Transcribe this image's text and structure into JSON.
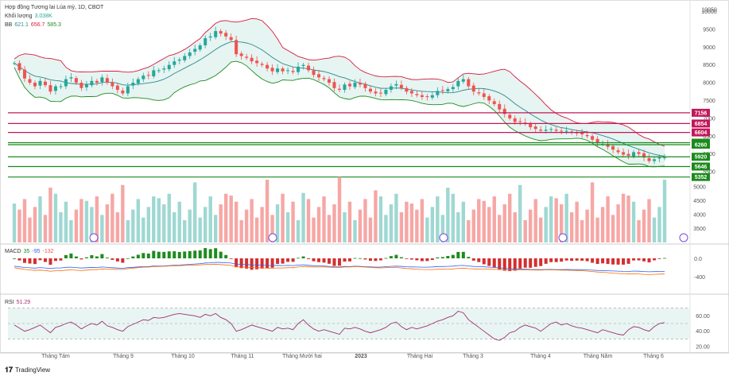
{
  "header": {
    "title": "Hợp đồng Tương lai Lúa mỳ, 1D, CBOT",
    "volume_label": "Khối lượng",
    "volume_value": "3.038K",
    "bb_label": "BB",
    "bb_values": [
      "621.1",
      "656.7",
      "585.3"
    ]
  },
  "macd": {
    "label": "MACD",
    "values": [
      "35",
      "-95",
      "-132"
    ]
  },
  "rsi": {
    "label": "RSI",
    "value": "51.29"
  },
  "brand": {
    "name": "TradingView"
  },
  "colors": {
    "up": "#26a69a",
    "down": "#ef5350",
    "bb_upper": "#d81b3c",
    "bb_basis": "#2a8c8c",
    "bb_lower": "#1e8c1e",
    "resistance": "#c2185b",
    "support": "#1b8a1b",
    "rsi_line": "#a0306e"
  },
  "chart_data": [
    {
      "type": "line",
      "name": "price",
      "yticks": [
        "10050",
        "10000",
        "9500",
        "9000",
        "8500",
        "8000",
        "7500",
        "7000",
        "6500",
        "6000",
        "5500"
      ],
      "ylim": [
        5300,
        10100
      ],
      "x_labels": [
        "Tháng Tám",
        "Tháng 9",
        "Tháng 10",
        "Tháng 11",
        "Tháng Mười hai",
        "2023",
        "Tháng Hai",
        "Tháng 3",
        "Tháng 4",
        "Tháng Năm",
        "Tháng 6"
      ],
      "close": [
        855,
        835,
        812,
        800,
        790,
        805,
        793,
        775,
        790,
        790,
        810,
        815,
        800,
        785,
        795,
        805,
        800,
        815,
        800,
        790,
        780,
        770,
        790,
        800,
        810,
        820,
        820,
        835,
        835,
        840,
        850,
        860,
        865,
        875,
        885,
        895,
        905,
        925,
        930,
        945,
        938,
        930,
        920,
        880,
        875,
        870,
        860,
        855,
        850,
        840,
        832,
        840,
        832,
        835,
        830,
        845,
        850,
        835,
        822,
        815,
        810,
        800,
        785,
        780,
        795,
        790,
        800,
        795,
        785,
        775,
        770,
        770,
        780,
        790,
        796,
        785,
        775,
        770,
        765,
        760,
        760,
        765,
        777,
        778,
        782,
        788,
        805,
        810,
        790,
        775,
        770,
        760,
        750,
        740,
        725,
        712,
        700,
        690,
        690,
        685,
        675,
        670,
        665,
        668,
        670,
        665,
        663,
        665,
        660,
        658,
        655,
        650,
        640,
        630,
        628,
        620,
        612,
        605,
        598,
        595,
        605,
        600,
        590,
        580,
        585,
        590,
        590
      ],
      "horizontal_levels": [
        {
          "value": "7156",
          "kind": "resistance"
        },
        {
          "value": "6854",
          "kind": "resistance"
        },
        {
          "value": "6604",
          "kind": "resistance"
        },
        {
          "value": "6316",
          "kind": "support"
        },
        {
          "value": "6260",
          "kind": "support"
        },
        {
          "value": "5920",
          "kind": "support"
        },
        {
          "value": "5646",
          "kind": "support"
        },
        {
          "value": "5352",
          "kind": "support"
        }
      ]
    },
    {
      "type": "bar",
      "name": "volume",
      "yticks": [
        "5000",
        "4500",
        "4000",
        "3500"
      ],
      "ylim": [
        3000,
        5200
      ]
    },
    {
      "type": "line",
      "name": "macd",
      "yticks": [
        "0.0",
        "-400"
      ]
    },
    {
      "type": "line",
      "name": "rsi",
      "yticks": [
        "60.00",
        "40.00",
        "20.00"
      ],
      "ylim": [
        20,
        80
      ],
      "values": [
        48,
        44,
        40,
        42,
        45,
        48,
        43,
        38,
        45,
        47,
        50,
        52,
        48,
        43,
        47,
        50,
        48,
        53,
        47,
        45,
        42,
        40,
        46,
        49,
        52,
        55,
        54,
        58,
        57,
        58,
        60,
        62,
        63,
        62,
        61,
        60,
        58,
        62,
        60,
        63,
        58,
        55,
        50,
        40,
        42,
        45,
        48,
        46,
        44,
        42,
        40,
        45,
        43,
        44,
        42,
        50,
        55,
        48,
        43,
        40,
        42,
        40,
        38,
        36,
        44,
        43,
        45,
        43,
        40,
        38,
        40,
        42,
        45,
        50,
        52,
        46,
        42,
        45,
        43,
        45,
        47,
        50,
        53,
        55,
        58,
        60,
        66,
        64,
        55,
        50,
        45,
        40,
        35,
        30,
        28,
        32,
        38,
        40,
        45,
        48,
        46,
        44,
        40,
        45,
        50,
        52,
        48,
        50,
        47,
        45,
        44,
        42,
        40,
        38,
        42,
        40,
        38,
        36,
        35,
        42,
        46,
        45,
        42,
        40,
        46,
        50,
        51.29
      ]
    }
  ]
}
